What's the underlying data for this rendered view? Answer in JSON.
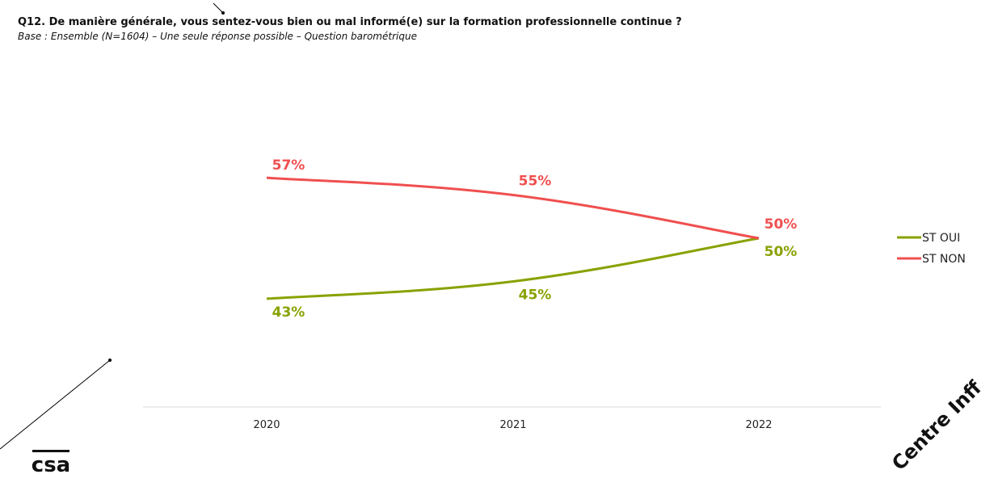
{
  "question_title": "Q12. De manière générale, vous sentez-vous bien ou mal informé(e) sur la formation professionnelle continue ?",
  "base_note": "Base : Ensemble (N=1604) – Une seule réponse possible – Question barométrique",
  "watermark": "Centre Inff",
  "logo_text": "csa",
  "colors": {
    "oui": "#8aa100",
    "non": "#f04f4f",
    "axis": "#d9d9d9",
    "text": "#222222"
  },
  "chart_data": {
    "type": "line",
    "categories": [
      "2020",
      "2021",
      "2022"
    ],
    "ylim": [
      0,
      100
    ],
    "series": [
      {
        "name": "ST OUI",
        "values": [
          43,
          45,
          50
        ],
        "labels": [
          "43%",
          "45%",
          "50%"
        ],
        "color": "#8aa100"
      },
      {
        "name": "ST NON",
        "values": [
          57,
          55,
          50
        ],
        "labels": [
          "57%",
          "55%",
          "50%"
        ],
        "color": "#f04f4f"
      }
    ],
    "legend": "right"
  }
}
